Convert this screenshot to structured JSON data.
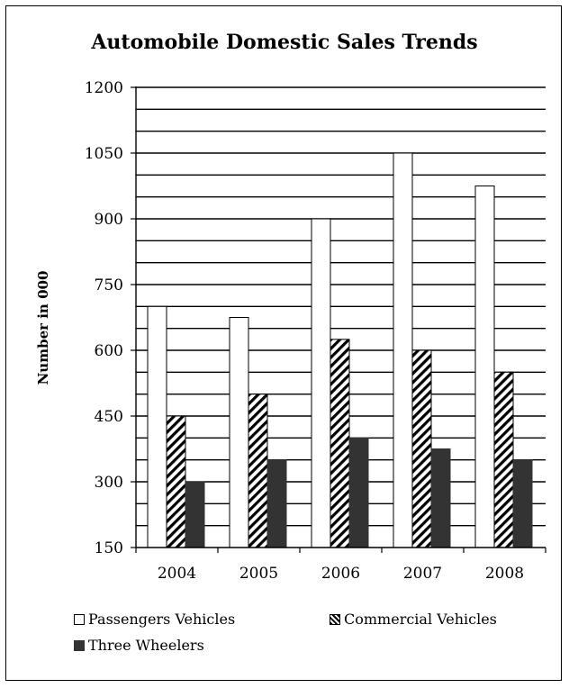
{
  "chart_data": {
    "type": "bar",
    "title": "Automobile Domestic Sales Trends",
    "xlabel": "",
    "ylabel": "Number in 000",
    "ylim": [
      150,
      1200
    ],
    "yticks": [
      150,
      300,
      450,
      600,
      750,
      900,
      1050,
      1200
    ],
    "categories": [
      "2004",
      "2005",
      "2006",
      "2007",
      "2008"
    ],
    "series": [
      {
        "name": "Passengers Vehicles",
        "values": [
          700,
          675,
          900,
          1050,
          975
        ],
        "fill": "white"
      },
      {
        "name": "Commercial Vehicles",
        "values": [
          450,
          500,
          625,
          600,
          550
        ],
        "fill": "diagonal-hatch"
      },
      {
        "name": "Three Wheelers",
        "values": [
          300,
          350,
          400,
          375,
          350
        ],
        "fill": "#333333"
      }
    ],
    "grid": true,
    "legend_position": "bottom"
  }
}
